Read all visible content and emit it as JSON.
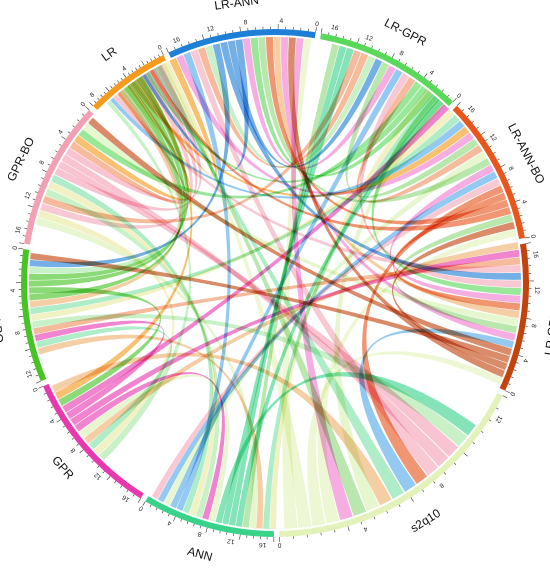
{
  "chart_data": {
    "type": "chord",
    "segments": [
      {
        "name": "s2q10",
        "color": "#e3f2b8",
        "ticks": [
          "0",
          "4",
          "8",
          "12"
        ]
      },
      {
        "name": "LR-GPR-BO",
        "color": "#c1440e",
        "ticks": [
          "0",
          "4",
          "8",
          "12",
          "16"
        ]
      },
      {
        "name": "LR-ANN-BO",
        "color": "#e8561c",
        "ticks": [
          "0",
          "4",
          "8",
          "12",
          "16"
        ]
      },
      {
        "name": "LR-GPR",
        "color": "#5ad85a",
        "ticks": [
          "0",
          "4",
          "8",
          "12",
          "16"
        ]
      },
      {
        "name": "LR-ANN",
        "color": "#1e7fd6",
        "ticks": [
          "0",
          "4",
          "8",
          "12",
          "16"
        ]
      },
      {
        "name": "LR",
        "color": "#f59a1c",
        "ticks": [
          "0",
          "4",
          "8"
        ]
      },
      {
        "name": "GPR-BO",
        "color": "#f4a0b4",
        "ticks": [
          "0",
          "4",
          "8",
          "12",
          "16"
        ]
      },
      {
        "name": "ANN-BO",
        "color": "#46c424",
        "ticks": [
          "0",
          "4",
          "8",
          "12"
        ]
      },
      {
        "name": "GPR",
        "color": "#e838b0",
        "ticks": [
          "0",
          "4",
          "8",
          "12",
          "16"
        ]
      },
      {
        "name": "ANN",
        "color": "#38d28a",
        "ticks": [
          "0",
          "4",
          "8",
          "12",
          "16"
        ]
      }
    ],
    "palette": [
      "#a6e8a6",
      "#f09060",
      "#f4a6b8",
      "#52a8e8",
      "#f07ad0",
      "#8ed87a",
      "#d6f0b0",
      "#f0b070",
      "#7ee0a6",
      "#e8e8a0"
    ]
  }
}
